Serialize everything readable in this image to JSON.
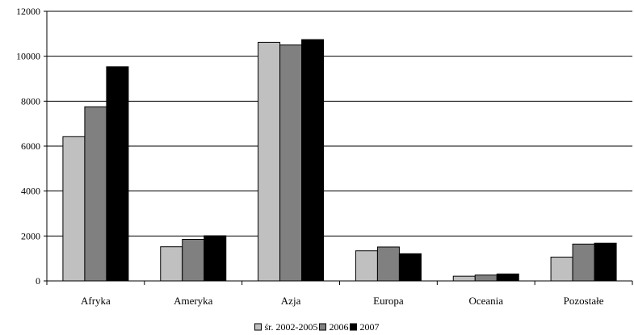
{
  "chart_data": {
    "type": "bar",
    "categories": [
      "Afryka",
      "Ameryka",
      "Azja",
      "Europa",
      "Oceania",
      "Pozostałe"
    ],
    "series": [
      {
        "name": "śr. 2002-2005",
        "color": "#c0c0c0",
        "values": [
          6420,
          1520,
          10620,
          1340,
          210,
          1060
        ]
      },
      {
        "name": "2006",
        "color": "#808080",
        "values": [
          7750,
          1850,
          10500,
          1510,
          260,
          1640
        ]
      },
      {
        "name": "2007",
        "color": "#000000",
        "values": [
          9530,
          2010,
          10740,
          1210,
          310,
          1680
        ]
      }
    ],
    "ylim": [
      0,
      12000
    ],
    "yticks": [
      0,
      2000,
      4000,
      6000,
      8000,
      10000,
      12000
    ],
    "ytick_labels": [
      "0",
      "2000",
      "4000",
      "6000",
      "8000",
      "10000",
      "12000"
    ],
    "grid": true,
    "legend_position": "bottom",
    "title": "",
    "xlabel": "",
    "ylabel": ""
  }
}
